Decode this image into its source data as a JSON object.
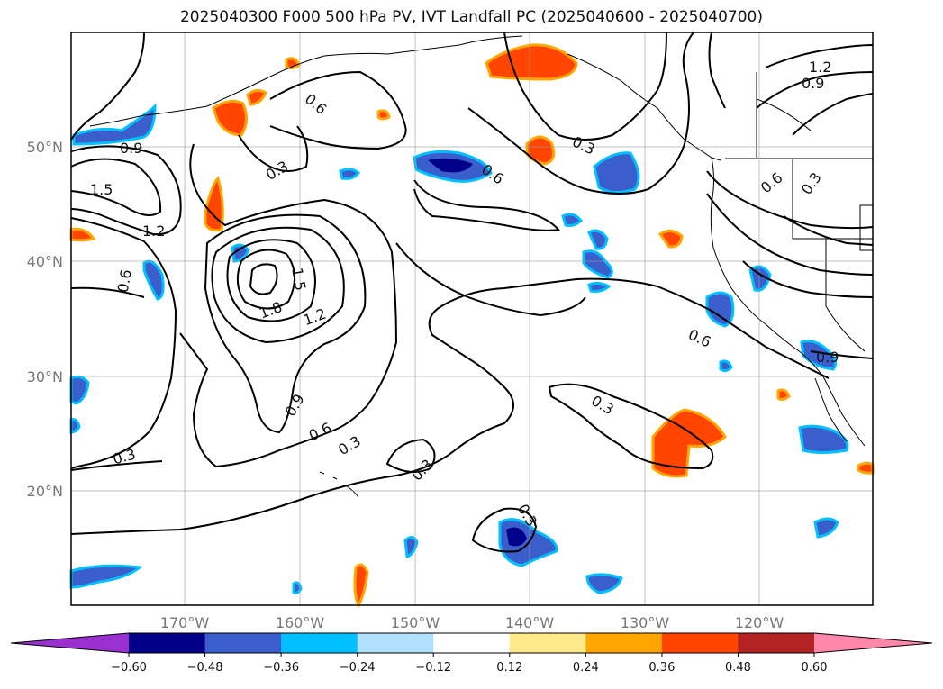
{
  "title": "2025040300 F000 500 hPa PV, IVT Landfall PC (2025040600 - 2025040700)",
  "map": {
    "projection": "lat-lon",
    "lon_range": [
      -180,
      -110
    ],
    "lat_range": [
      10,
      60
    ],
    "lat_labels": [
      "50°N",
      "40°N",
      "30°N",
      "20°N"
    ],
    "lon_labels": [
      "170°W",
      "160°W",
      "150°W",
      "140°W",
      "130°W",
      "120°W"
    ],
    "grid": true,
    "contour_labels": [
      "1.2",
      "0.9",
      "0.6",
      "0.9",
      "1.5",
      "1.2",
      "0.3",
      "0.6",
      "0.3",
      "0.6",
      "0.3",
      "0.6",
      "0.3",
      "1.5",
      "1.8",
      "1.2",
      "0.9",
      "0.6",
      "0.3",
      "0.3",
      "0.6",
      "0.9",
      "0.3",
      "0.3"
    ]
  },
  "colorbar": {
    "ticks": [
      "−0.60",
      "−0.48",
      "−0.36",
      "−0.24",
      "−0.12",
      "0.12",
      "0.24",
      "0.36",
      "0.48",
      "0.60"
    ],
    "colors": [
      "#9b30d0",
      "#00008b",
      "#3a5fcd",
      "#00bfff",
      "#b0e2ff",
      "#ffffff",
      "#fde98a",
      "#ffa500",
      "#ff4500",
      "#b22222",
      "#ff88aa"
    ],
    "extend": "both"
  }
}
